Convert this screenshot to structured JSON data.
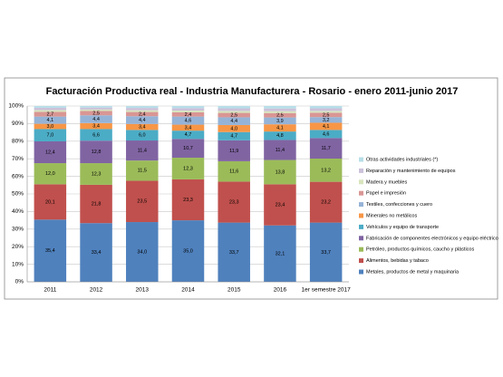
{
  "chart_data": {
    "type": "stacked_bar",
    "title": "Facturación Productiva real - Industria Manufacturera  - Rosario - enero 2011-junio 2017",
    "categories": [
      "2011",
      "2012",
      "2013",
      "2014",
      "2015",
      "2016",
      "1er semestre 2017"
    ],
    "ylim": [
      0,
      100
    ],
    "yticks": [
      {
        "value": 0,
        "label": "0%"
      },
      {
        "value": 10,
        "label": "10%"
      },
      {
        "value": 20,
        "label": "20%"
      },
      {
        "value": 30,
        "label": "30%"
      },
      {
        "value": 40,
        "label": "40%"
      },
      {
        "value": 50,
        "label": "50%"
      },
      {
        "value": 60,
        "label": "60%"
      },
      {
        "value": 70,
        "label": "70%"
      },
      {
        "value": 80,
        "label": "80%"
      },
      {
        "value": 90,
        "label": "90%"
      },
      {
        "value": 100,
        "label": "100%"
      }
    ],
    "grid": true,
    "legend": "right",
    "series": [
      {
        "name": "Metales, productos de metal y maquinaria",
        "color": "#4f81bd",
        "values": [
          35.4,
          33.4,
          34.0,
          35.0,
          33.7,
          32.1,
          33.7
        ],
        "value_labels": [
          "35,4",
          "33,4",
          "34,0",
          "35,0",
          "33,7",
          "32,1",
          "33,7"
        ]
      },
      {
        "name": "Alimentos, bebidas y tabaco",
        "color": "#c0504d",
        "values": [
          20.1,
          21.8,
          23.5,
          23.3,
          23.3,
          23.4,
          23.2
        ],
        "value_labels": [
          "20,1",
          "21,8",
          "23,5",
          "23,3",
          "23,3",
          "23,4",
          "23,2"
        ]
      },
      {
        "name": "Petróleo, productos químicos, caucho y plásticos",
        "color": "#9bbb59",
        "values": [
          12.0,
          12.3,
          11.5,
          12.3,
          11.6,
          13.8,
          13.2
        ],
        "value_labels": [
          "12,0",
          "12,3",
          "11,5",
          "12,3",
          "11,6",
          "13,8",
          "13,2"
        ]
      },
      {
        "name": "Fabricación de componentes electrónicos y equipo eléctrico",
        "color": "#8064a2",
        "values": [
          12.4,
          12.8,
          11.4,
          10.7,
          11.9,
          11.4,
          11.7
        ],
        "value_labels": [
          "12,4",
          "12,8",
          "11,4",
          "10,7",
          "11,9",
          "11,4",
          "11,7"
        ]
      },
      {
        "name": "Vehículos y equipo de transporte",
        "color": "#4bacc6",
        "values": [
          7.0,
          6.6,
          6.0,
          4.7,
          4.7,
          4.8,
          4.6
        ],
        "value_labels": [
          "7,0",
          "6,6",
          "6,0",
          "4,7",
          "4,7",
          "4,8",
          "4,6"
        ]
      },
      {
        "name": "Minerales no metálicos",
        "color": "#f79646",
        "values": [
          3.0,
          3.4,
          3.4,
          3.4,
          4.0,
          4.1,
          4.1
        ],
        "value_labels": [
          "3,0",
          "3,4",
          "3,4",
          "3,4",
          "4,0",
          "4,1",
          "4,1"
        ]
      },
      {
        "name": "Textiles, confecciones y cuero",
        "color": "#95b3d7",
        "values": [
          4.1,
          4.4,
          4.4,
          4.6,
          4.4,
          3.9,
          3.2
        ],
        "value_labels": [
          "4,1",
          "4,4",
          "4,4",
          "4,6",
          "4,4",
          "3,9",
          "3,2"
        ]
      },
      {
        "name": "Papel e impresión",
        "color": "#d99694",
        "values": [
          2.7,
          2.5,
          2.4,
          2.4,
          2.5,
          2.5,
          2.5
        ],
        "value_labels": [
          "2,7",
          "2,5",
          "2,4",
          "2,4",
          "2,5",
          "2,5",
          "2,5"
        ]
      },
      {
        "name": "Madera y muebles",
        "color": "#d7e4bd",
        "values": [
          1.0,
          0.8,
          1.0,
          1.0,
          1.1,
          1.1,
          1.0
        ]
      },
      {
        "name": "Reparación y mantenimiento de equipos",
        "color": "#ccc1da",
        "values": [
          1.3,
          1.1,
          1.3,
          1.4,
          1.5,
          1.5,
          1.5
        ]
      },
      {
        "name": "Otras actividades industriales (*)",
        "color": "#b7dee8",
        "values": [
          1.0,
          0.9,
          1.1,
          1.2,
          1.3,
          1.4,
          1.3
        ]
      }
    ]
  }
}
